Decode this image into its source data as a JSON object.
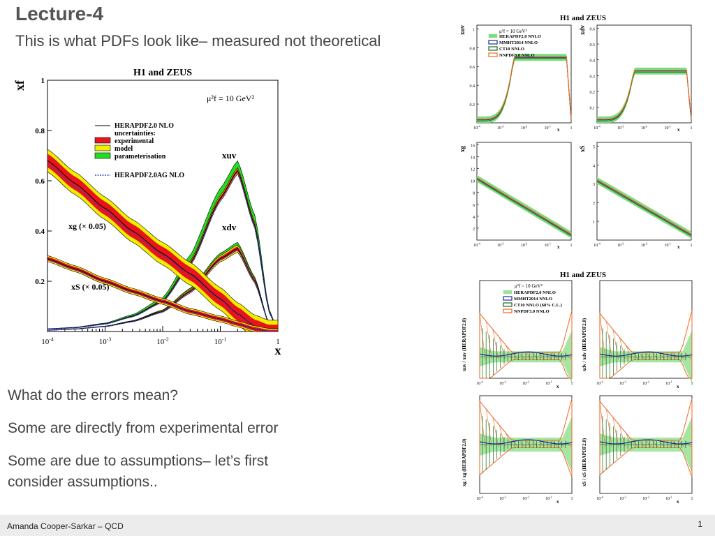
{
  "slide": {
    "title": "Lecture-4",
    "subtitle": "This is what PDFs look like– measured not theoretical",
    "bullets": [
      "What do the errors mean?",
      "Some are directly from experimental error",
      "Some are due to assumptions– let’s first",
      "consider assumptions.."
    ],
    "footer_author": "Amanda Cooper-Sarkar – QCD",
    "page_number": "1"
  },
  "main_chart": {
    "title": "H1 and ZEUS",
    "ylabel": "xf",
    "xlabel": "x",
    "scale_label": "μ²f = 10 GeV²",
    "x_ticks": [
      "10-4",
      "10-3",
      "10-2",
      "10-1",
      "1"
    ],
    "y_ticks": [
      "0.2",
      "0.4",
      "0.6",
      "0.8",
      "1"
    ],
    "legend": {
      "central": "HERAPDF2.0 NLO",
      "uncertainties": "uncertainties:",
      "experimental": "experimental",
      "model": "model",
      "parameterisation": "parameterisation",
      "alt": "HERAPDF2.0AG NLO"
    },
    "curve_labels": {
      "xuv": "xuv",
      "xdv": "xdv",
      "xg": "xg (× 0.05)",
      "xs": "xS (× 0.05)"
    },
    "colors": {
      "experimental": "#e8141c",
      "model": "#f2ee00",
      "parameterisation": "#22dd22",
      "central": "#000000",
      "alt": "#3344cc"
    }
  },
  "chart_data": [
    {
      "type": "line",
      "title": "H1 and ZEUS",
      "xlabel": "x",
      "ylabel": "xf",
      "xscale": "log",
      "xlim": [
        0.0001,
        1
      ],
      "ylim": [
        0,
        1
      ],
      "x": [
        0.0001,
        0.0003,
        0.001,
        0.003,
        0.01,
        0.03,
        0.1,
        0.2,
        0.4,
        0.7,
        1
      ],
      "series": [
        {
          "name": "xuv",
          "values": [
            0.01,
            0.015,
            0.03,
            0.06,
            0.12,
            0.27,
            0.53,
            0.64,
            0.42,
            0.08,
            0
          ]
        },
        {
          "name": "xdv",
          "values": [
            0.005,
            0.01,
            0.02,
            0.04,
            0.08,
            0.16,
            0.29,
            0.33,
            0.2,
            0.03,
            0
          ]
        },
        {
          "name": "xg (× 0.05)",
          "values": [
            0.68,
            0.59,
            0.49,
            0.4,
            0.31,
            0.23,
            0.13,
            0.07,
            0.02,
            0,
            0
          ]
        },
        {
          "name": "xS (× 0.05)",
          "values": [
            0.29,
            0.25,
            0.2,
            0.16,
            0.12,
            0.08,
            0.05,
            0.03,
            0.01,
            0,
            0
          ]
        }
      ]
    }
  ],
  "right_top": {
    "title": "H1 and ZEUS",
    "scale_label": "μ²f = 10 GeV²",
    "legend": [
      "HERAPDF2.0 NNLO",
      "MMHT2014 NNLO",
      "CT10 NNLO",
      "NNPDF3.0 NNLO"
    ],
    "panels": [
      {
        "ylabel": "xuv",
        "ticks": [
          "0.2",
          "0.4",
          "0.6",
          "0.8",
          "1"
        ]
      },
      {
        "ylabel": "xdv",
        "ticks": [
          "0.1",
          "0.2",
          "0.3",
          "0.4",
          "0.5",
          "0.6"
        ]
      },
      {
        "ylabel": "xg",
        "ticks": [
          "2",
          "4",
          "6",
          "8",
          "10",
          "12",
          "14",
          "16"
        ]
      },
      {
        "ylabel": "xS",
        "ticks": [
          "1",
          "2",
          "3",
          "4",
          "5"
        ]
      }
    ],
    "x_ticks": [
      "10-4",
      "10-3",
      "10-2",
      "10-1",
      "1"
    ],
    "xlabel": "x"
  },
  "right_bottom": {
    "title": "H1 and ZEUS",
    "scale_label": "μ²f = 10 GeV²",
    "legend": [
      "HERAPDF2.0 NNLO",
      "MMHT2014 NNLO",
      "CT10 NNLO (68% C.L.)",
      "NNPDF3.0 NNLO"
    ],
    "panels": [
      {
        "ylabel": "xuv / xuv (HERAPDF2.0)"
      },
      {
        "ylabel": "xdv / xdv (HERAPDF2.0)"
      },
      {
        "ylabel": "xg / xg (HERAPDF2.0)"
      },
      {
        "ylabel": "xS / xS (HERAPDF2.0)"
      }
    ],
    "x_ticks": [
      "10-4",
      "10-3",
      "10-2",
      "10-1",
      "1"
    ],
    "xlabel": "x"
  }
}
